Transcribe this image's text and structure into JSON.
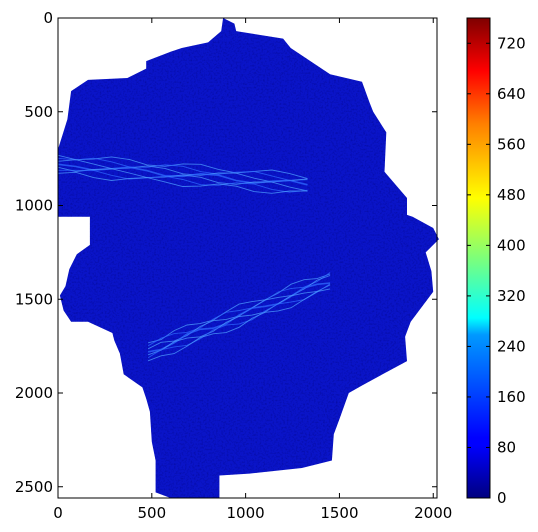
{
  "chart_data": {
    "type": "heatmap",
    "title": "",
    "xlabel": "",
    "ylabel": "",
    "xlim": [
      0,
      2020
    ],
    "ylim": [
      2560,
      0
    ],
    "grid": false,
    "x_ticks": [
      0,
      500,
      1000,
      1500,
      2000
    ],
    "y_ticks": [
      0,
      500,
      1000,
      1500,
      2000,
      2500
    ],
    "colormap": "jet",
    "colorbar": {
      "min": 0,
      "max": 760,
      "ticks": [
        0,
        80,
        160,
        240,
        320,
        400,
        480,
        560,
        640,
        720
      ]
    },
    "nodata_color": "#ffffff",
    "dominant_value_range": [
      0,
      120
    ],
    "region_outline": [
      [
        880,
        0
      ],
      [
        940,
        30
      ],
      [
        950,
        70
      ],
      [
        1200,
        110
      ],
      [
        1240,
        160
      ],
      [
        1450,
        300
      ],
      [
        1620,
        340
      ],
      [
        1660,
        450
      ],
      [
        1680,
        500
      ],
      [
        1750,
        610
      ],
      [
        1740,
        820
      ],
      [
        1860,
        960
      ],
      [
        1860,
        1050
      ],
      [
        1890,
        1060
      ],
      [
        2000,
        1120
      ],
      [
        2030,
        1180
      ],
      [
        1960,
        1250
      ],
      [
        1990,
        1350
      ],
      [
        2000,
        1460
      ],
      [
        1880,
        1620
      ],
      [
        1850,
        1700
      ],
      [
        1860,
        1830
      ],
      [
        1730,
        1900
      ],
      [
        1620,
        1960
      ],
      [
        1550,
        2000
      ],
      [
        1500,
        2140
      ],
      [
        1470,
        2220
      ],
      [
        1460,
        2360
      ],
      [
        1300,
        2400
      ],
      [
        1020,
        2430
      ],
      [
        860,
        2440
      ],
      [
        860,
        2560
      ],
      [
        600,
        2560
      ],
      [
        520,
        2530
      ],
      [
        520,
        2440
      ],
      [
        520,
        2360
      ],
      [
        500,
        2260
      ],
      [
        490,
        2100
      ],
      [
        470,
        2030
      ],
      [
        450,
        1970
      ],
      [
        350,
        1900
      ],
      [
        330,
        1790
      ],
      [
        300,
        1720
      ],
      [
        290,
        1680
      ],
      [
        160,
        1620
      ],
      [
        70,
        1620
      ],
      [
        30,
        1560
      ],
      [
        10,
        1480
      ],
      [
        40,
        1430
      ],
      [
        60,
        1340
      ],
      [
        100,
        1260
      ],
      [
        170,
        1210
      ],
      [
        170,
        1060
      ],
      [
        0,
        1060
      ],
      [
        0,
        700
      ],
      [
        50,
        540
      ],
      [
        70,
        390
      ],
      [
        160,
        330
      ],
      [
        370,
        320
      ],
      [
        470,
        270
      ],
      [
        470,
        230
      ],
      [
        600,
        180
      ],
      [
        660,
        160
      ],
      [
        800,
        130
      ],
      [
        870,
        70
      ],
      [
        880,
        0
      ]
    ],
    "highlight_bands": [
      {
        "start": [
          0,
          780
        ],
        "end": [
          1330,
          890
        ],
        "value_range": [
          160,
          280
        ]
      },
      {
        "start": [
          480,
          1780
        ],
        "end": [
          1450,
          1400
        ],
        "value_range": [
          160,
          300
        ]
      }
    ]
  }
}
